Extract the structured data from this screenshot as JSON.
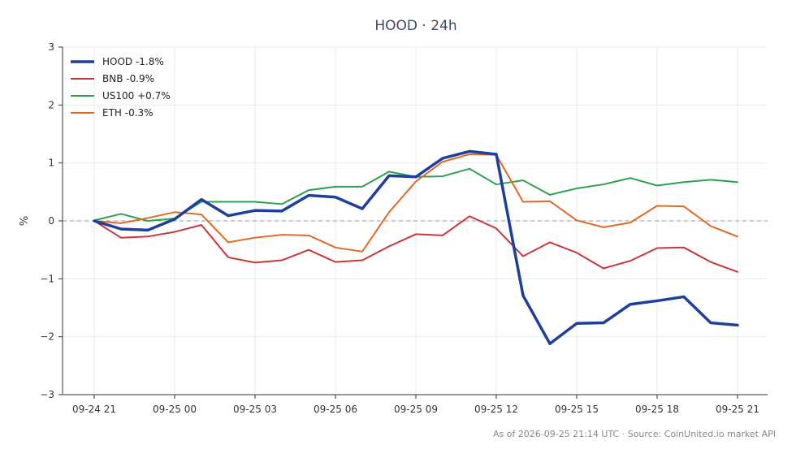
{
  "chart_data": {
    "type": "line",
    "title": "HOOD · 24h",
    "ylabel": "%",
    "xlabel": "",
    "ylim": [
      -3,
      3
    ],
    "yticks": [
      3,
      2,
      1,
      0,
      -1,
      -2,
      -3
    ],
    "ytick_labels": [
      "3",
      "2",
      "1",
      "0",
      "−1",
      "−2",
      "−3"
    ],
    "x": [
      0,
      1,
      2,
      3,
      4,
      5,
      6,
      7,
      8,
      9,
      10,
      11,
      12,
      13,
      14,
      15,
      16,
      17,
      18,
      19,
      20,
      21,
      22,
      23,
      24
    ],
    "xticks": [
      0,
      3,
      6,
      9,
      12,
      15,
      18,
      21,
      24
    ],
    "xtick_labels": [
      "09-24 21",
      "09-25 00",
      "09-25 03",
      "09-25 06",
      "09-25 09",
      "09-25 12",
      "09-25 15",
      "09-25 18",
      "09-25 21"
    ],
    "grid": true,
    "zero_line": true,
    "legend_position": "top-left",
    "series": [
      {
        "name": "HOOD -1.8%",
        "color": "#1f3f9c",
        "emphasis": true,
        "values": [
          0.0,
          -0.14,
          -0.16,
          0.03,
          0.37,
          0.09,
          0.18,
          0.17,
          0.44,
          0.41,
          0.21,
          0.78,
          0.76,
          1.08,
          1.2,
          1.15,
          -1.29,
          -2.12,
          -1.77,
          -1.76,
          -1.44,
          -1.38,
          -1.31,
          -1.76,
          -1.8
        ]
      },
      {
        "name": "BNB -0.9%",
        "color": "#c8373a",
        "values": [
          0.0,
          -0.29,
          -0.27,
          -0.19,
          -0.07,
          -0.63,
          -0.72,
          -0.68,
          -0.5,
          -0.71,
          -0.68,
          -0.44,
          -0.23,
          -0.25,
          0.08,
          -0.13,
          -0.61,
          -0.37,
          -0.55,
          -0.82,
          -0.69,
          -0.47,
          -0.46,
          -0.71,
          -0.88
        ]
      },
      {
        "name": "US100 +0.7%",
        "color": "#2ca24d",
        "values": [
          0.01,
          0.12,
          0.0,
          0.04,
          0.33,
          0.33,
          0.33,
          0.29,
          0.53,
          0.59,
          0.59,
          0.85,
          0.76,
          0.77,
          0.9,
          0.63,
          0.7,
          0.45,
          0.56,
          0.63,
          0.74,
          0.61,
          0.67,
          0.71,
          0.67
        ]
      },
      {
        "name": "ETH -0.3%",
        "color": "#e06a26",
        "values": [
          0.0,
          -0.04,
          0.05,
          0.15,
          0.11,
          -0.37,
          -0.29,
          -0.24,
          -0.25,
          -0.46,
          -0.53,
          0.15,
          0.68,
          1.02,
          1.15,
          1.14,
          0.33,
          0.34,
          0.01,
          -0.11,
          -0.03,
          0.26,
          0.25,
          -0.09,
          -0.27
        ]
      }
    ]
  },
  "footer": "As of 2026-09-25 21:14 UTC · Source: CoinUnited.io market API"
}
